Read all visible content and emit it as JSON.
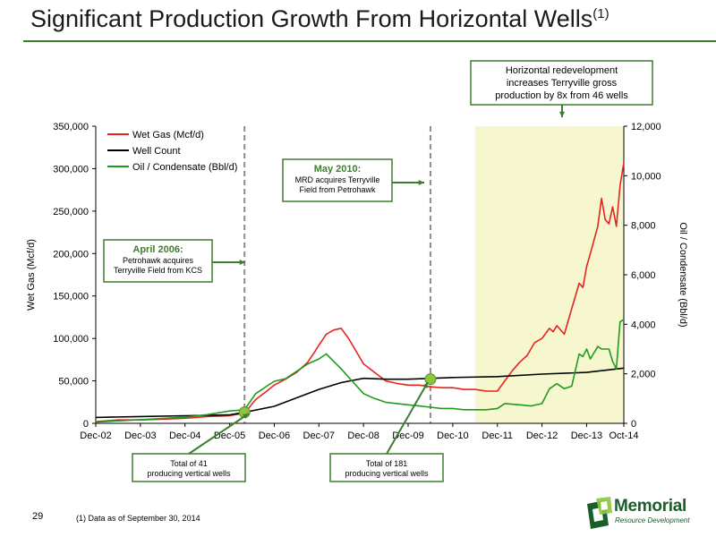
{
  "header": {
    "title": "Significant Production Growth From Horizontal Wells",
    "title_sup": "(1)"
  },
  "footer": {
    "page_number": "29",
    "footnote": "(1)    Data as of September 30, 2014",
    "logo_main": "Memorial",
    "logo_sub": "Resource Development"
  },
  "colors": {
    "wet_gas": "#e8231f",
    "well_count": "#000000",
    "oil": "#1e9a1e",
    "accent_green": "#3d7d2e",
    "highlight": "#f7f7cf",
    "marker": "#8cc63f"
  },
  "chart_data": {
    "type": "line",
    "xlabel": "",
    "ylabel_left": "Wet Gas (Mcf/d)",
    "ylabel_right": "Oil / Condensate (Bbl/d)",
    "ylim_left": [
      0,
      350000
    ],
    "ylim_right": [
      0,
      12000
    ],
    "yticks_left": [
      "0",
      "50,000",
      "100,000",
      "150,000",
      "200,000",
      "250,000",
      "300,000",
      "350,000"
    ],
    "yticks_right": [
      "0",
      "2,000",
      "4,000",
      "6,000",
      "8,000",
      "10,000",
      "12,000"
    ],
    "xticks": [
      "Dec-02",
      "Dec-03",
      "Dec-04",
      "Dec-05",
      "Dec-06",
      "Dec-07",
      "Dec-08",
      "Dec-09",
      "Dec-10",
      "Dec-11",
      "Dec-12",
      "Dec-13",
      "Oct-14"
    ],
    "legend_position": "top-left",
    "grid": false,
    "series": [
      {
        "name": "Wet Gas (Mcf/d)",
        "axis": "left",
        "x": [
          "Dec-02",
          "Jun-03",
          "Dec-03",
          "Jun-04",
          "Dec-04",
          "Jun-05",
          "Dec-05",
          "Apr-06",
          "Jul-06",
          "Oct-06",
          "Dec-06",
          "Mar-07",
          "Jun-07",
          "Sep-07",
          "Nov-07",
          "Dec-07",
          "Feb-08",
          "Apr-08",
          "Jun-08",
          "Aug-08",
          "Oct-08",
          "Dec-08",
          "Mar-09",
          "Jun-09",
          "Sep-09",
          "Dec-09",
          "Mar-10",
          "Jun-10",
          "Sep-10",
          "Dec-10",
          "Mar-11",
          "Jun-11",
          "Sep-11",
          "Dec-11",
          "Feb-12",
          "Apr-12",
          "Jun-12",
          "Aug-12",
          "Oct-12",
          "Dec-12",
          "Feb-13",
          "Mar-13",
          "Apr-13",
          "Jun-13",
          "Aug-13",
          "Oct-13",
          "Nov-13",
          "Dec-13",
          "Jan-14",
          "Mar-14",
          "Apr-14",
          "May-14",
          "Jun-14",
          "Jul-14",
          "Aug-14",
          "Sep-14",
          "Oct-14"
        ],
        "values": [
          2000,
          4000,
          4000,
          5000,
          6000,
          8000,
          9000,
          12000,
          28000,
          38000,
          45000,
          52000,
          60000,
          72000,
          85000,
          92000,
          105000,
          110000,
          112000,
          100000,
          85000,
          70000,
          60000,
          50000,
          47000,
          45000,
          45000,
          43000,
          42000,
          42000,
          40000,
          40000,
          38000,
          38000,
          50000,
          62000,
          72000,
          80000,
          95000,
          100000,
          112000,
          108000,
          115000,
          105000,
          135000,
          165000,
          160000,
          185000,
          200000,
          232000,
          265000,
          240000,
          235000,
          255000,
          232000,
          280000,
          307000
        ]
      },
      {
        "name": "Well Count",
        "axis": "left",
        "x": [
          "Dec-02",
          "Dec-03",
          "Dec-04",
          "Dec-05",
          "Apr-06",
          "Dec-06",
          "Jun-07",
          "Dec-07",
          "Jun-08",
          "Dec-08",
          "Jun-09",
          "Dec-09",
          "Dec-10",
          "Dec-11",
          "Dec-12",
          "Dec-13",
          "Oct-14"
        ],
        "values": [
          7000,
          8000,
          9000,
          10000,
          13000,
          20000,
          30000,
          40000,
          48000,
          53000,
          52000,
          52000,
          54000,
          55000,
          58000,
          60000,
          65000
        ]
      },
      {
        "name": "Oil / Condensate (Bbl/d)",
        "axis": "right",
        "x": [
          "Dec-02",
          "Jun-03",
          "Dec-03",
          "Jun-04",
          "Dec-04",
          "Jun-05",
          "Dec-05",
          "Apr-06",
          "Jul-06",
          "Oct-06",
          "Dec-06",
          "Mar-07",
          "Jun-07",
          "Sep-07",
          "Dec-07",
          "Feb-08",
          "Apr-08",
          "Jun-08",
          "Sep-08",
          "Dec-08",
          "Mar-09",
          "Jun-09",
          "Sep-09",
          "Dec-09",
          "Mar-10",
          "Jun-10",
          "Sep-10",
          "Dec-10",
          "Mar-11",
          "Jun-11",
          "Sep-11",
          "Dec-11",
          "Feb-12",
          "Jun-12",
          "Sep-12",
          "Dec-12",
          "Feb-13",
          "Apr-13",
          "Jun-13",
          "Aug-13",
          "Oct-13",
          "Nov-13",
          "Dec-13",
          "Jan-14",
          "Mar-14",
          "Apr-14",
          "Jun-14",
          "Jul-14",
          "Aug-14",
          "Sep-14",
          "Oct-14"
        ],
        "values": [
          50,
          100,
          150,
          200,
          250,
          350,
          500,
          550,
          1200,
          1500,
          1700,
          1800,
          2100,
          2400,
          2600,
          2800,
          2500,
          2200,
          1700,
          1200,
          1000,
          850,
          800,
          750,
          700,
          650,
          600,
          600,
          550,
          550,
          550,
          600,
          800,
          750,
          700,
          800,
          1400,
          1600,
          1400,
          1500,
          2800,
          2700,
          3000,
          2600,
          3100,
          3000,
          3000,
          2500,
          2200,
          4100,
          4200
        ]
      }
    ],
    "shaded_region": {
      "from": "Jun-11",
      "to": "Oct-14"
    },
    "vertical_markers": [
      "Apr-06",
      "Jun-10"
    ],
    "points": [
      {
        "x": "Apr-06",
        "y": 13000,
        "label": "Total of 41\nproducing vertical wells"
      },
      {
        "x": "Jun-10",
        "y": 52000,
        "label": "Total of 181\nproducing vertical wells"
      }
    ],
    "annotations": [
      {
        "title": "April 2006:",
        "text": "Petrohawk acquires\nTerryville Field from KCS"
      },
      {
        "title": "May 2010:",
        "text": "MRD acquires Terryville\nField from Petrohawk"
      },
      {
        "title": "",
        "text": "Horizontal redevelopment\nincreases Terryville gross\nproduction by 8x from 46 wells"
      }
    ]
  }
}
